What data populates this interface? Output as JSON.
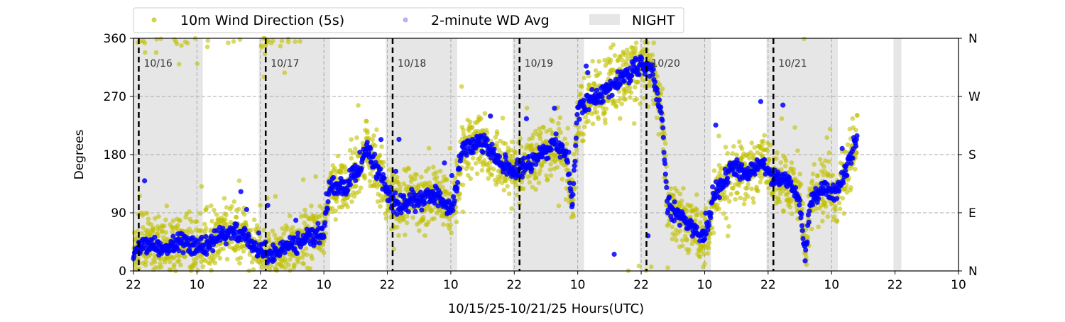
{
  "chart_data": {
    "type": "scatter",
    "title": "",
    "xlabel": "10/15/25-10/21/25  Hours(UTC)",
    "ylabel": "Degrees",
    "x_units": "hours since 10/15 22:00 UTC",
    "xlim": [
      0,
      156
    ],
    "ylim": [
      0,
      360
    ],
    "x_tick_values": [
      0,
      12,
      24,
      36,
      48,
      60,
      72,
      84,
      96,
      108,
      120,
      132,
      144,
      156
    ],
    "x_tick_labels": [
      "22",
      "10",
      "22",
      "10",
      "22",
      "10",
      "22",
      "10",
      "22",
      "10",
      "22",
      "10",
      "22",
      "10"
    ],
    "y_ticks": [
      0,
      90,
      180,
      270,
      360
    ],
    "y_tick_labels": [
      "0",
      "90",
      "180",
      "270",
      "360"
    ],
    "right_ticks": [
      0,
      90,
      180,
      270,
      360
    ],
    "right_tick_labels": [
      "N",
      "E",
      "S",
      "W",
      "N"
    ],
    "grid": "horizontal dashed at 90/180/270",
    "legend": {
      "placement": "top-center",
      "entries": [
        "10m Wind Direction (5s)",
        "2-minute WD Avg",
        "NIGHT"
      ]
    },
    "day_markers": [
      {
        "x": 1,
        "label": "10/16"
      },
      {
        "x": 25,
        "label": "10/17"
      },
      {
        "x": 49,
        "label": "10/18"
      },
      {
        "x": 73,
        "label": "10/19"
      },
      {
        "x": 97,
        "label": "10/20"
      },
      {
        "x": 121,
        "label": "10/21"
      }
    ],
    "night_bands": [
      [
        0,
        13.1
      ],
      [
        23.7,
        37.2
      ],
      [
        47.7,
        61.2
      ],
      [
        71.7,
        85.2
      ],
      [
        95.7,
        109.2
      ],
      [
        119.7,
        133.2
      ],
      [
        143.7,
        145.2
      ]
    ],
    "series": [
      {
        "name": "2-minute WD Avg",
        "color": "#0000ff",
        "trend": [
          [
            0,
            30
          ],
          [
            3,
            40
          ],
          [
            6,
            35
          ],
          [
            9,
            45
          ],
          [
            12,
            35
          ],
          [
            15,
            45
          ],
          [
            18,
            60
          ],
          [
            21,
            55
          ],
          [
            23.5,
            30
          ],
          [
            26,
            25
          ],
          [
            30,
            40
          ],
          [
            34,
            55
          ],
          [
            36,
            60
          ],
          [
            37,
            130
          ],
          [
            40,
            130
          ],
          [
            42,
            150
          ],
          [
            44,
            190
          ],
          [
            46,
            160
          ],
          [
            48,
            120
          ],
          [
            50,
            100
          ],
          [
            54,
            110
          ],
          [
            57,
            120
          ],
          [
            60,
            95
          ],
          [
            61,
            120
          ],
          [
            62,
            190
          ],
          [
            66,
            200
          ],
          [
            69,
            170
          ],
          [
            72,
            155
          ],
          [
            74,
            160
          ],
          [
            77,
            180
          ],
          [
            80,
            200
          ],
          [
            82,
            175
          ],
          [
            83,
            100
          ],
          [
            84,
            250
          ],
          [
            88,
            270
          ],
          [
            92,
            300
          ],
          [
            96,
            320
          ],
          [
            98,
            310
          ],
          [
            100,
            240
          ],
          [
            101,
            100
          ],
          [
            104,
            80
          ],
          [
            108,
            50
          ],
          [
            110,
            120
          ],
          [
            113,
            160
          ],
          [
            116,
            150
          ],
          [
            119,
            170
          ],
          [
            121,
            145
          ],
          [
            124,
            140
          ],
          [
            126,
            110
          ],
          [
            127,
            20
          ],
          [
            128,
            110
          ],
          [
            131,
            130
          ],
          [
            133,
            120
          ],
          [
            135,
            160
          ],
          [
            136.8,
            205
          ]
        ]
      },
      {
        "name": "10m Wind Direction (5s)",
        "color": "#bfbf00",
        "spread_deg": 35
      }
    ]
  }
}
